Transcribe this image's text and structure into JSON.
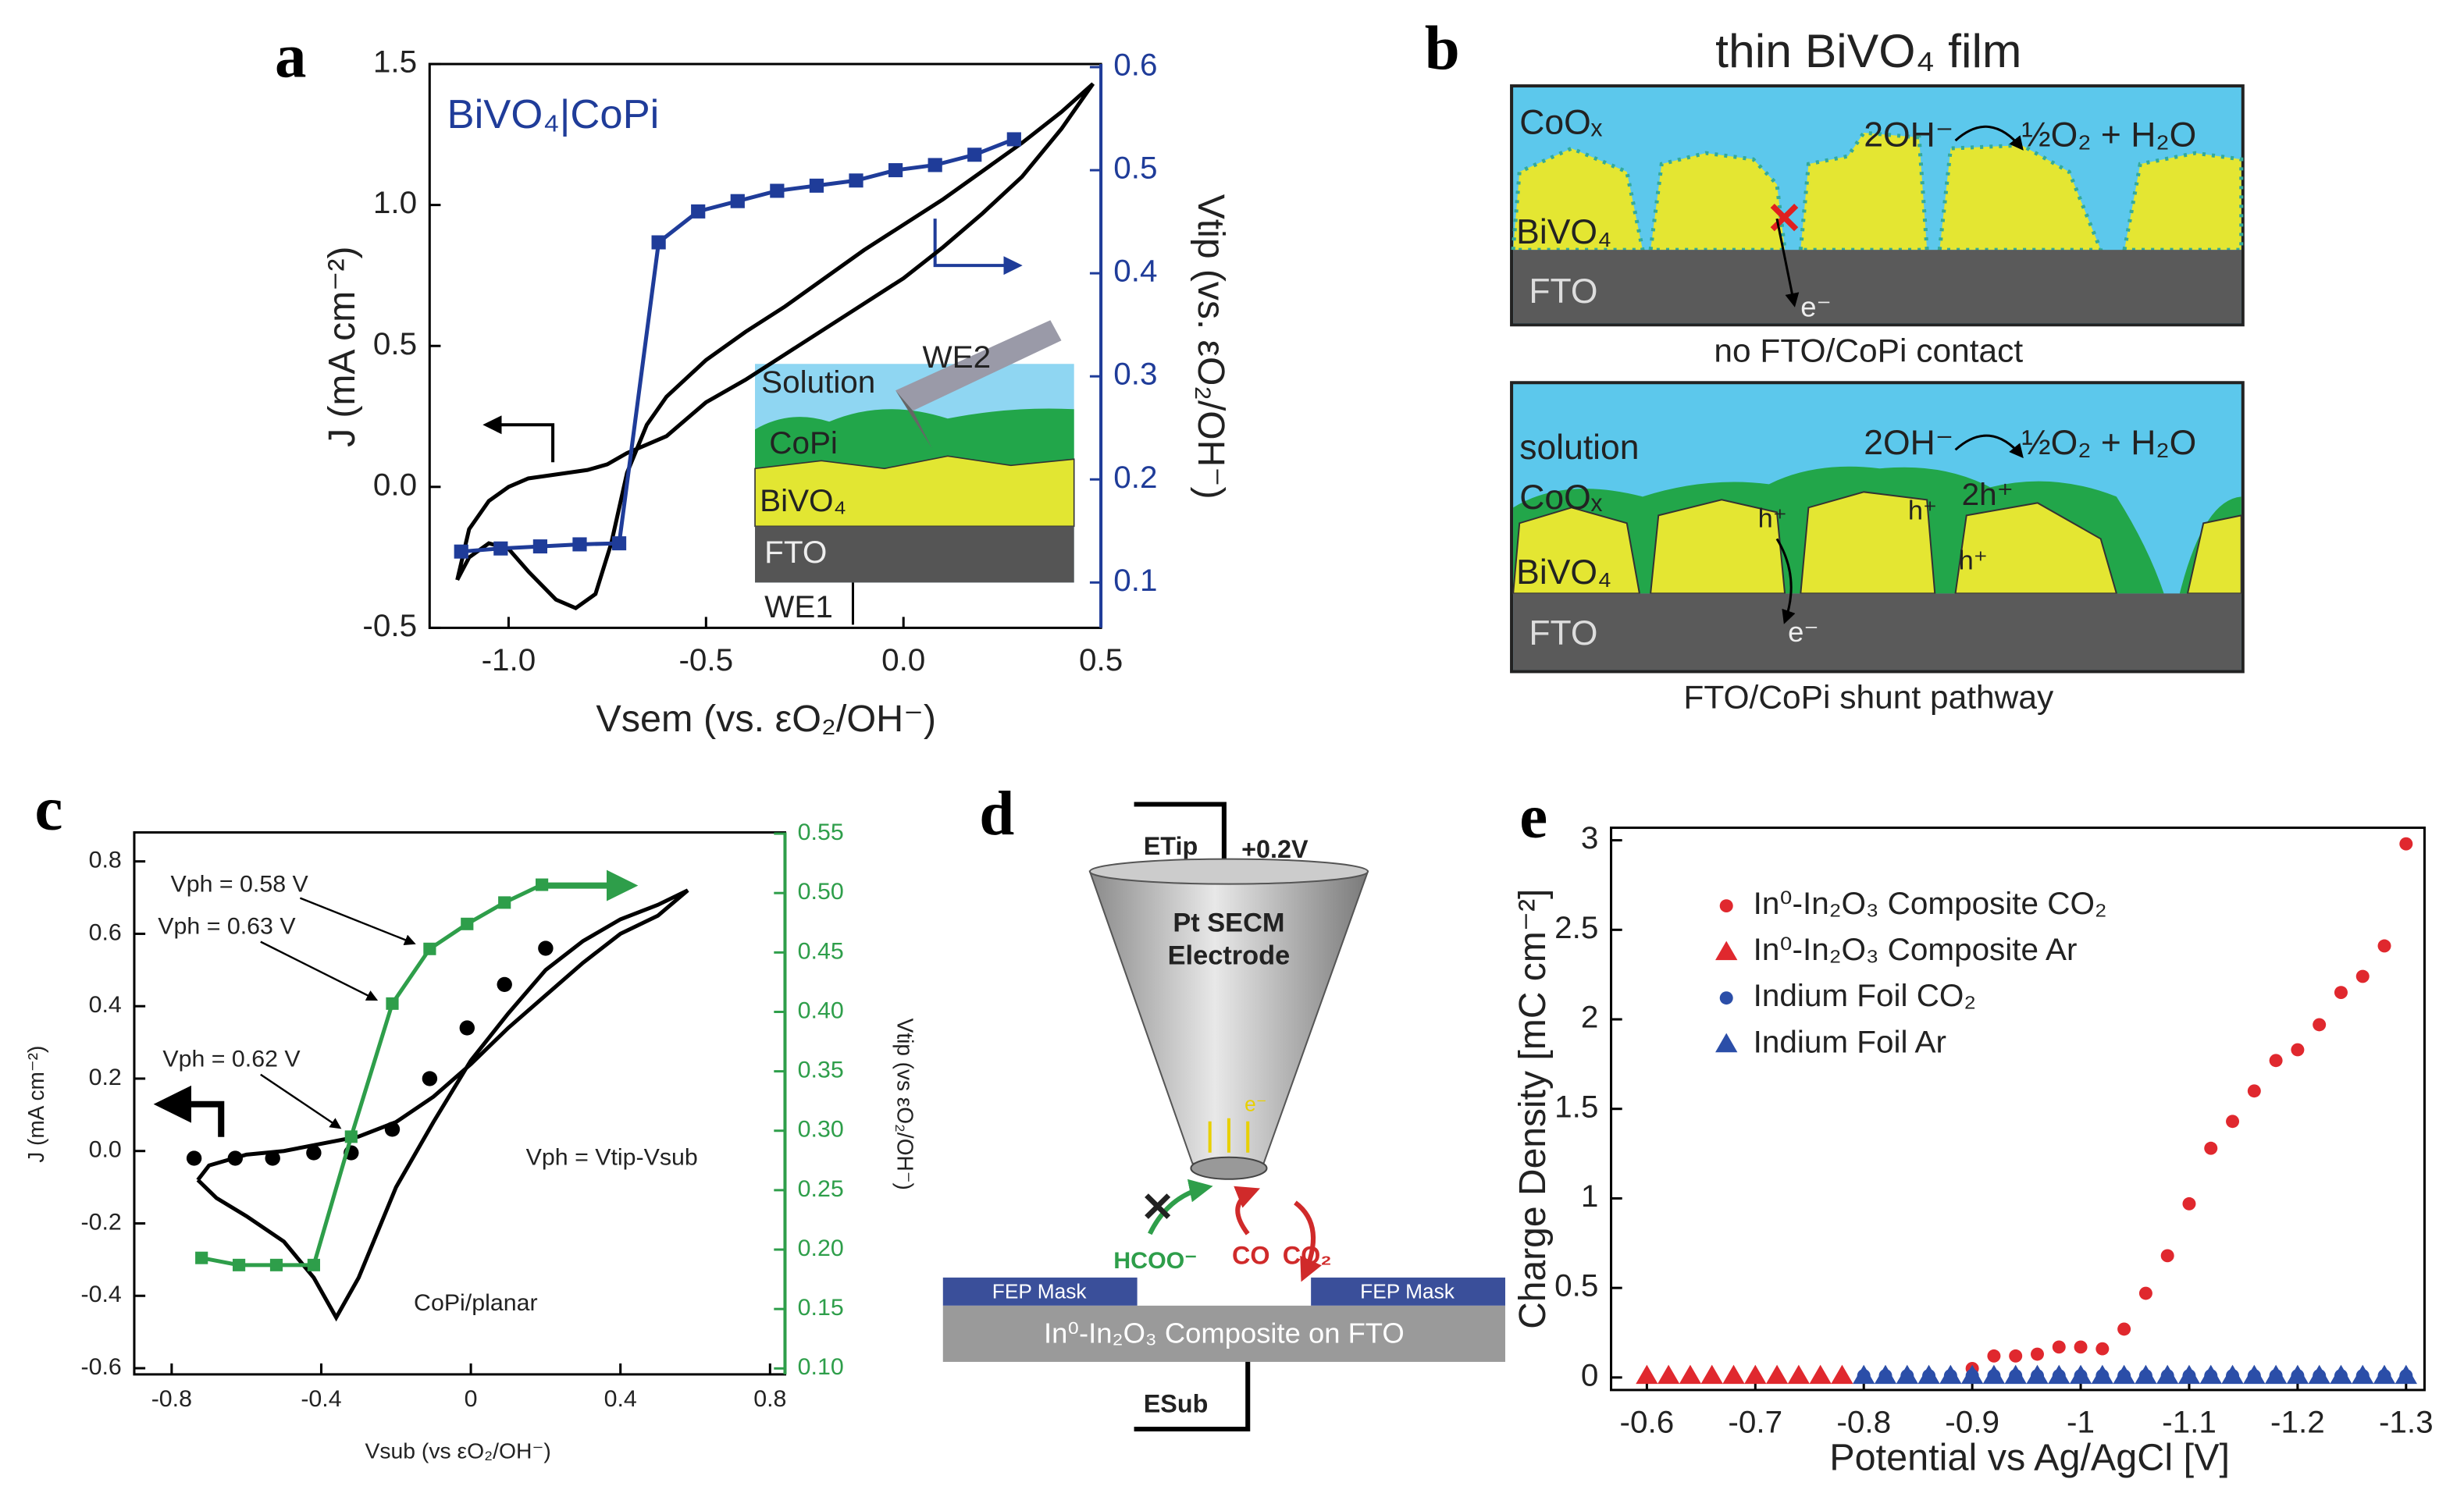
{
  "chart_data": [
    {
      "panel": "a",
      "type": "line",
      "annotations": [
        "BiVO₄|CoPi",
        "Solution",
        "CoPi",
        "BiVO₄",
        "FTO",
        "WE2",
        "WE1"
      ],
      "xlabel": "Vsem (vs. εO₂/OH⁻)",
      "ylabel": "J (mA cm⁻²)",
      "y2label": "Vtip (vs. εO₂/OH⁻)",
      "xlim": [
        -1.2,
        0.5
      ],
      "xticks": [
        {
          "value": -1,
          "label": "-1.0"
        },
        -0.5,
        {
          "value": 0,
          "label": "0.0"
        },
        0.5
      ],
      "ylim": [
        -0.5,
        1.5
      ],
      "yticks": [
        -0.5,
        {
          "value": 0,
          "label": "0.0"
        },
        0.5,
        {
          "value": 1,
          "label": "1.0"
        },
        1.5
      ],
      "y2lim": [
        0.056,
        0.603
      ],
      "y2ticks": [
        0.1,
        0.2,
        0.3,
        0.4,
        0.5,
        0.6
      ],
      "y2_color": "#1f3c99",
      "series": [
        {
          "color": "#000000",
          "mode": "line",
          "x": [
            -1.13,
            -1.1,
            -1.05,
            -1.0,
            -0.95,
            -0.9,
            -0.85,
            -0.8,
            -0.75,
            -0.7,
            -0.65,
            -0.6,
            -0.5,
            -0.4,
            -0.3,
            -0.2,
            -0.1,
            0,
            0.1,
            0.2,
            0.3,
            0.4,
            0.48,
            0.4,
            0.3,
            0.2,
            0.1,
            0,
            -0.1,
            -0.2,
            -0.3,
            -0.4,
            -0.5,
            -0.6,
            -0.65,
            -0.7,
            -0.74,
            -0.78,
            -0.83,
            -0.88,
            -0.95,
            -1.0,
            -1.05,
            -1.1,
            -1.13
          ],
          "values": [
            -0.33,
            -0.15,
            -0.05,
            0.0,
            0.03,
            0.04,
            0.05,
            0.06,
            0.08,
            0.12,
            0.15,
            0.18,
            0.3,
            0.38,
            0.47,
            0.56,
            0.65,
            0.74,
            0.85,
            0.97,
            1.1,
            1.27,
            1.43,
            1.33,
            1.22,
            1.12,
            1.02,
            0.93,
            0.84,
            0.74,
            0.64,
            0.55,
            0.45,
            0.32,
            0.22,
            0.05,
            -0.2,
            -0.38,
            -0.43,
            -0.4,
            -0.3,
            -0.22,
            -0.2,
            -0.25,
            -0.33
          ]
        },
        {
          "color": "#1f3c99",
          "mode": "line+markers",
          "marker": "square",
          "axis": "y2",
          "x": [
            -1.12,
            -1.02,
            -0.92,
            -0.82,
            -0.72,
            -0.62,
            -0.52,
            -0.42,
            -0.32,
            -0.22,
            -0.12,
            -0.02,
            0.08,
            0.18,
            0.28
          ],
          "values": [
            0.13,
            0.133,
            0.135,
            0.137,
            0.138,
            0.43,
            0.46,
            0.47,
            0.48,
            0.485,
            0.49,
            0.5,
            0.505,
            0.515,
            0.53
          ]
        }
      ]
    },
    {
      "panel": "c",
      "type": "line",
      "annotations": [
        "Vph = 0.58 V",
        "Vph = 0.63 V",
        "Vph = 0.62 V",
        "Vph = Vtip-Vsub",
        "CoPi/planar"
      ],
      "xlabel": "Vsub (vs εO₂/OH⁻)",
      "ylabel": "J (mA cm⁻²)",
      "y2label": "Vtip (vs εO₂/OH⁻)",
      "xlim": [
        -0.9,
        0.84
      ],
      "xticks": [
        -0.8,
        -0.4,
        0,
        0.4,
        0.8
      ],
      "ylim": [
        -0.617,
        0.88
      ],
      "yticks": [
        -0.6,
        -0.4,
        -0.2,
        {
          "value": 0,
          "label": "0.0"
        },
        0.2,
        0.4,
        0.6,
        0.8
      ],
      "y2lim": [
        0.095,
        0.551
      ],
      "y2ticks": [
        {
          "value": 0.1,
          "label": "0.10"
        },
        0.15,
        {
          "value": 0.2,
          "label": "0.20"
        },
        0.25,
        {
          "value": 0.3,
          "label": "0.30"
        },
        0.35,
        {
          "value": 0.4,
          "label": "0.40"
        },
        0.45,
        {
          "value": 0.5,
          "label": "0.50"
        },
        0.55
      ],
      "y2_color": "#2e9e4a",
      "series": [
        {
          "color": "#000000",
          "mode": "line",
          "x": [
            -0.73,
            -0.68,
            -0.6,
            -0.5,
            -0.42,
            -0.36,
            -0.3,
            -0.2,
            -0.1,
            0,
            0.1,
            0.2,
            0.3,
            0.4,
            0.5,
            0.58,
            0.5,
            0.4,
            0.3,
            0.2,
            0.1,
            0,
            -0.1,
            -0.2,
            -0.3,
            -0.4,
            -0.5,
            -0.6,
            -0.7,
            -0.73
          ],
          "values": [
            -0.08,
            -0.13,
            -0.18,
            -0.25,
            -0.35,
            -0.46,
            -0.35,
            -0.1,
            0.08,
            0.25,
            0.38,
            0.5,
            0.58,
            0.64,
            0.68,
            0.72,
            0.65,
            0.6,
            0.52,
            0.43,
            0.34,
            0.24,
            0.15,
            0.08,
            0.04,
            0.02,
            0.0,
            -0.01,
            -0.04,
            -0.08
          ]
        },
        {
          "color": "#000000",
          "mode": "markers",
          "marker": "circle",
          "x": [
            -0.74,
            -0.63,
            -0.53,
            -0.42,
            -0.32,
            -0.21,
            -0.11,
            -0.01,
            0.09,
            0.2
          ],
          "values": [
            -0.02,
            -0.02,
            -0.02,
            -0.005,
            -0.005,
            0.06,
            0.2,
            0.34,
            0.46,
            0.56
          ]
        },
        {
          "color": "#2e9e4a",
          "mode": "line+markers",
          "marker": "square",
          "axis": "y2",
          "x": [
            -0.72,
            -0.62,
            -0.52,
            -0.42,
            -0.32,
            -0.21,
            -0.11,
            -0.01,
            0.09,
            0.19
          ],
          "values": [
            0.193,
            0.187,
            0.187,
            0.187,
            0.295,
            0.407,
            0.453,
            0.474,
            0.492,
            0.507
          ]
        }
      ]
    },
    {
      "panel": "e",
      "type": "scatter",
      "legend": "upper left",
      "xlabel": "Potential vs Ag/AgCl [V]",
      "ylabel": "Charge Density [mC cm⁻²]",
      "xlim": [
        -0.567,
        -1.317
      ],
      "xticks": [
        -0.6,
        -0.7,
        -0.8,
        -0.9,
        -1,
        -1.1,
        -1.2,
        -1.3
      ],
      "ylim": [
        -0.07,
        3.07
      ],
      "yticks": [
        0,
        0.5,
        1,
        1.5,
        2,
        2.5,
        3
      ],
      "series": [
        {
          "name": "In⁰-In₂O₃ Composite CO₂",
          "color": "#e0282e",
          "mode": "markers",
          "marker": "circle",
          "x": [
            -0.9,
            -0.92,
            -0.94,
            -0.96,
            -0.98,
            -1,
            -1.02,
            -1.04,
            -1.06,
            -1.08,
            -1.1,
            -1.12,
            -1.14,
            -1.16,
            -1.18,
            -1.2,
            -1.22,
            -1.24,
            -1.26,
            -1.28,
            -1.3
          ],
          "values": [
            0.05,
            0.12,
            0.12,
            0.13,
            0.17,
            0.17,
            0.16,
            0.27,
            0.47,
            0.68,
            0.97,
            1.28,
            1.43,
            1.6,
            1.77,
            1.83,
            1.97,
            2.15,
            2.24,
            2.41,
            2.98
          ]
        },
        {
          "name": "In⁰-In₂O₃ Composite Ar",
          "color": "#e0282e",
          "mode": "markers",
          "marker": "triangle",
          "x": [
            -0.6,
            -0.62,
            -0.64,
            -0.66,
            -0.68,
            -0.7,
            -0.72,
            -0.74,
            -0.76,
            -0.78
          ],
          "values": [
            0.01,
            0.01,
            0.01,
            0.01,
            0.01,
            0.01,
            0.01,
            0.01,
            0.01,
            0.01
          ]
        },
        {
          "name": "Indium Foil CO₂",
          "color": "#2b4ea8",
          "mode": "markers",
          "marker": "circle",
          "x": [
            -0.8,
            -0.82,
            -0.84,
            -0.86,
            -0.88,
            -0.9,
            -0.92,
            -0.94,
            -0.96,
            -0.98,
            -1,
            -1.02,
            -1.04,
            -1.06,
            -1.08,
            -1.1,
            -1.12,
            -1.14,
            -1.16,
            -1.18,
            -1.2,
            -1.22,
            -1.24,
            -1.26,
            -1.28,
            -1.3
          ],
          "values": [
            0.01,
            0.01,
            0.01,
            0.01,
            0.01,
            0.01,
            0.01,
            0.01,
            0.01,
            0.01,
            0.01,
            0.01,
            0.01,
            0.01,
            0.01,
            0.01,
            0.01,
            0.01,
            0.01,
            0.01,
            0.01,
            0.01,
            0.01,
            0.01,
            0.01,
            0.01
          ]
        },
        {
          "name": "Indium Foil Ar",
          "color": "#2b4ea8",
          "mode": "markers",
          "marker": "triangle",
          "x": [
            -0.8,
            -0.82,
            -0.84,
            -0.86,
            -0.88,
            -0.9,
            -0.92,
            -0.94,
            -0.96,
            -0.98,
            -1,
            -1.02,
            -1.04,
            -1.06,
            -1.08,
            -1.1,
            -1.12,
            -1.14,
            -1.16,
            -1.18,
            -1.2,
            -1.22,
            -1.24,
            -1.26,
            -1.28,
            -1.3
          ],
          "values": [
            0.01,
            0.01,
            0.01,
            0.01,
            0.01,
            0.01,
            0.01,
            0.01,
            0.01,
            0.01,
            0.01,
            0.01,
            0.01,
            0.01,
            0.01,
            0.01,
            0.01,
            0.01,
            0.01,
            0.01,
            0.01,
            0.01,
            0.01,
            0.01,
            0.01,
            0.01
          ]
        }
      ]
    }
  ],
  "diagram_b": {
    "panel": "b",
    "title": "thin BiVO₄ film",
    "top": {
      "labels": [
        "CoOₓ",
        "BiVO₄",
        "FTO",
        "2OH⁻",
        "½O₂ + H₂O",
        "e⁻"
      ],
      "caption": "no FTO/CoPi contact"
    },
    "bottom": {
      "labels": [
        "solution",
        "CoOₓ",
        "BiVO₄",
        "FTO",
        "2OH⁻",
        "½O₂ + H₂O",
        "h⁺",
        "h⁺",
        "2h⁺",
        "h⁺",
        "e⁻"
      ],
      "caption": "FTO/CoPi shunt pathway"
    }
  },
  "diagram_d": {
    "panel": "d",
    "labels": [
      "ETip",
      "+0.2V",
      "Pt SECM",
      "Electrode",
      "e⁻",
      "HCOO⁻",
      "CO",
      "CO₂",
      "FEP Mask",
      "FEP Mask",
      "In⁰-In₂O₃ Composite on FTO",
      "ESub"
    ]
  }
}
